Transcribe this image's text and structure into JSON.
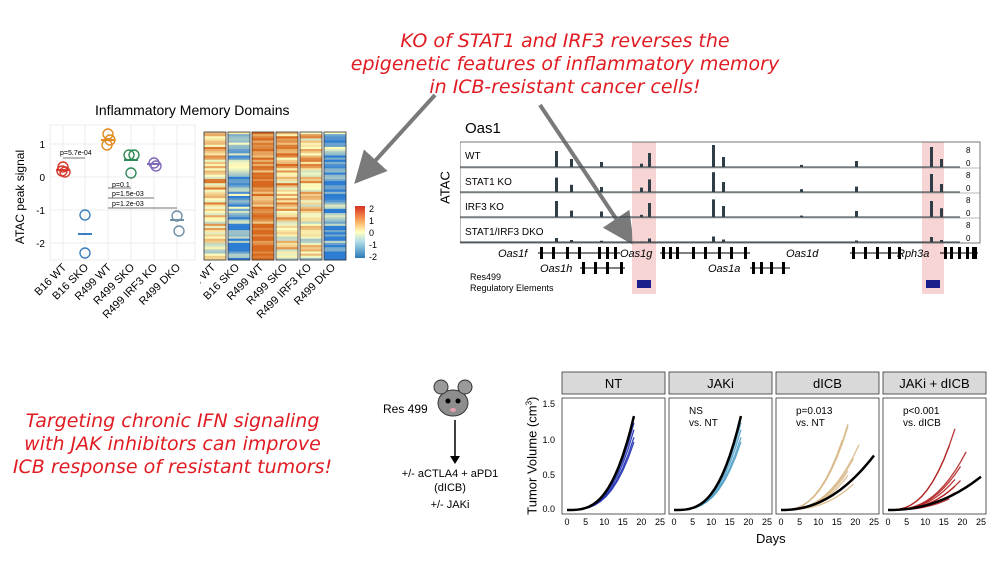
{
  "headline_top": [
    "KO of STAT1 and IRF3 reverses the",
    "epigenetic features of inflammatory memory",
    "in ICB-resistant cancer cells!"
  ],
  "headline_bottom": [
    "Targeting chronic IFN signaling",
    "with JAK inhibitors can improve",
    "ICB response of resistant tumors!"
  ],
  "colors": {
    "accent_red": "#e11b22",
    "track_fill": "#2f3e46",
    "highlight": "#f6caca",
    "element_blue": "#1a1f8c"
  },
  "dotplot": {
    "title": "Inflammatory Memory Domains",
    "ylabel": "ATAC peak signal",
    "yticks": [
      "1",
      "0",
      "-1",
      "-2"
    ],
    "categories": [
      "B16 WT",
      "B16 SKO",
      "R499 WT",
      "R499 SKO",
      "R499 IRF3 KO",
      "R499 DKO"
    ],
    "pvalues": [
      "p=5.7e-04",
      "p=0.1",
      "p=1.5e-03",
      "p=1.2e-03"
    ]
  },
  "heatmap": {
    "columns": [
      "B16 WT",
      "B16 SKO",
      "R499 WT",
      "R499 SKO",
      "R499 IRF3 KO",
      "R499 DKO"
    ],
    "legend_ticks": [
      "2",
      "1",
      "0",
      "-1",
      "-2"
    ]
  },
  "tracks": {
    "gene_locus": "Oas1",
    "assay": "ATAC",
    "samples": [
      "WT",
      "STAT1 KO",
      "IRF3 KO",
      "STAT1/IRF3 DKO"
    ],
    "scale_max": "8",
    "scale_min": "0",
    "genes": [
      "Oas1f",
      "Oas1g",
      "Oas1d",
      "Rph3a",
      "Oas1h",
      "Oas1a"
    ],
    "elements_label": [
      "Res499",
      "Regulatory Elements"
    ]
  },
  "schematic": {
    "model": "Res 499",
    "treatment": [
      "+/- aCTLA4 + aPD1",
      "(dICB)",
      "+/-  JAKi"
    ]
  },
  "growth": {
    "ylabel_main": "Tumor Volume (cm",
    "ylabel_sup": "3",
    "ylabel_end": ")",
    "xlabel": "Days",
    "yticks": [
      "1.5",
      "1.0",
      "0.5",
      "0.0"
    ],
    "xticks": [
      "0",
      "5",
      "10",
      "15",
      "20",
      "25"
    ],
    "panels": [
      {
        "title": "NT",
        "note": [
          "",
          ""
        ]
      },
      {
        "title": "JAKi",
        "note": [
          "NS",
          "vs. NT"
        ]
      },
      {
        "title": "dICB",
        "note": [
          "p=0.013",
          "vs. NT"
        ]
      },
      {
        "title": "JAKi + dICB",
        "note": [
          "p<0.001",
          "vs. dICB"
        ]
      }
    ]
  }
}
